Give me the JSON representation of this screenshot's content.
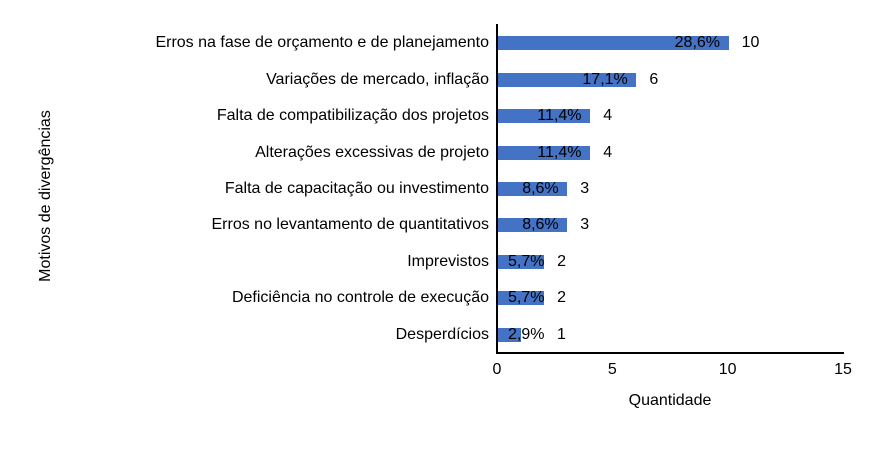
{
  "chart_data": {
    "type": "bar",
    "orientation": "horizontal",
    "title": "",
    "xlabel": "Quantidade",
    "ylabel": "Motivos de divergências",
    "categories": [
      "Erros na fase de orçamento e de planejamento",
      "Variações de mercado, inflação",
      "Falta de compatibilização dos projetos",
      "Alterações excessivas de projeto",
      "Falta de capacitação ou investimento",
      "Erros no levantamento de quantitativos",
      "Imprevistos",
      "Deficiência no controle de execução",
      "Desperdícios"
    ],
    "values": [
      10,
      6,
      4,
      4,
      3,
      3,
      2,
      2,
      1
    ],
    "percent_labels": [
      "28,6%",
      "17,1%",
      "11,4%",
      "11,4%",
      "8,6%",
      "8,6%",
      "5,7%",
      "5,7%",
      "2,9%"
    ],
    "xlim": [
      0,
      15
    ],
    "x_ticks": [
      0,
      5,
      10,
      15
    ],
    "bar_color": "#4472C4",
    "axis_color": "#000000",
    "text_color": "#000000",
    "grid": false,
    "legend": false
  }
}
